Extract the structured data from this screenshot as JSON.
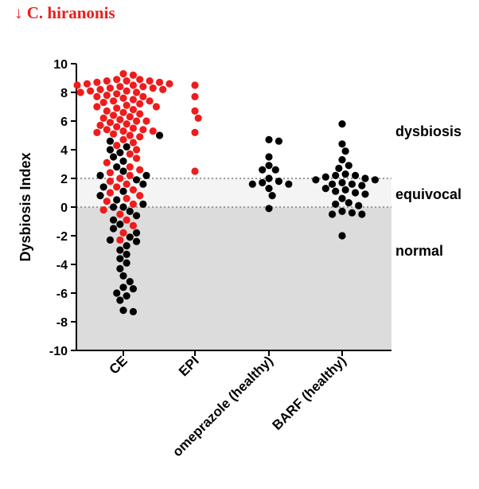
{
  "chart_data": {
    "type": "scatter",
    "title": "↓ C. hiranonis",
    "ylabel": "Dysbiosis Index",
    "ylim": [
      -10,
      10
    ],
    "yticks": [
      -10,
      -8,
      -6,
      -4,
      -2,
      0,
      2,
      4,
      6,
      8,
      10
    ],
    "categories": [
      "CE",
      "EPI",
      "omeprazole (healthy)",
      "BARF (healthy)"
    ],
    "thresholds": [
      0,
      2
    ],
    "zones": [
      {
        "label": "dysbiosis",
        "range": [
          2,
          10
        ],
        "color": "#ffffff"
      },
      {
        "label": "equivocal",
        "range": [
          0,
          2
        ],
        "color": "#f4f4f4"
      },
      {
        "label": "normal",
        "range": [
          -10,
          0
        ],
        "color": "#dcdcdc"
      }
    ],
    "colors": {
      "reduced_hiranonis": "#ee1c1c",
      "normal_hiranonis": "#000000",
      "threshold_line": "#9a9a9a",
      "axis": "#000000"
    },
    "series": [
      {
        "category": "CE",
        "red": [
          9.3,
          9.2,
          8.9,
          8.9,
          8.8,
          8.8,
          8.8,
          8.7,
          8.7,
          8.6,
          8.6,
          8.5,
          8.5,
          8.4,
          8.4,
          8.3,
          8.3,
          8.2,
          8.2,
          8.1,
          8.1,
          8.0,
          8.0,
          7.9,
          7.8,
          7.7,
          7.7,
          7.6,
          7.5,
          7.4,
          7.4,
          7.3,
          7.2,
          7.1,
          7.0,
          7.0,
          6.9,
          6.8,
          6.7,
          6.6,
          6.5,
          6.4,
          6.3,
          6.2,
          6.1,
          6.0,
          6.0,
          5.9,
          5.8,
          5.7,
          5.6,
          5.5,
          5.4,
          5.4,
          5.3,
          5.3,
          5.2,
          5.1,
          5.0,
          4.9,
          4.7,
          4.5,
          4.3,
          4.0,
          3.7,
          3.4,
          3.1,
          2.8,
          2.6,
          2.4,
          2.2,
          2.0,
          1.8,
          1.6,
          1.4,
          1.2,
          1.0,
          0.8,
          0.6,
          0.4,
          0.2,
          -0.2,
          -0.5,
          -0.9,
          -1.3,
          -1.8,
          -2.3
        ],
        "black": [
          5.0,
          4.6,
          4.2,
          4.0,
          3.8,
          3.5,
          3.2,
          2.8,
          2.5,
          2.2,
          2.2,
          1.9,
          1.6,
          1.4,
          1.1,
          0.8,
          0.5,
          0.2,
          0.0,
          0.0,
          -0.3,
          -0.6,
          -0.9,
          -1.2,
          -1.5,
          -1.8,
          -2.1,
          -2.3,
          -2.4,
          -2.7,
          -3.0,
          -3.3,
          -3.6,
          -3.9,
          -4.3,
          -4.8,
          -5.2,
          -5.6,
          -5.7,
          -6.0,
          -6.2,
          -6.5,
          -7.2,
          -7.3
        ]
      },
      {
        "category": "EPI",
        "red": [
          8.5,
          7.7,
          6.7,
          6.2,
          5.2,
          2.5
        ],
        "black": []
      },
      {
        "category": "omeprazole (healthy)",
        "red": [],
        "black": [
          4.7,
          4.6,
          3.5,
          2.9,
          2.6,
          2.6,
          2.0,
          1.8,
          1.7,
          1.6,
          1.6,
          1.3,
          0.8,
          -0.1
        ]
      },
      {
        "category": "BARF (healthy)",
        "red": [],
        "black": [
          5.8,
          4.4,
          3.9,
          3.3,
          2.9,
          2.7,
          2.3,
          2.2,
          2.2,
          2.1,
          2.0,
          1.9,
          1.9,
          1.7,
          1.6,
          1.6,
          1.5,
          1.3,
          1.2,
          1.1,
          1.0,
          0.9,
          0.6,
          0.3,
          0.2,
          0.1,
          -0.3,
          -0.4,
          -0.5,
          -0.5,
          -2.0
        ]
      }
    ]
  }
}
